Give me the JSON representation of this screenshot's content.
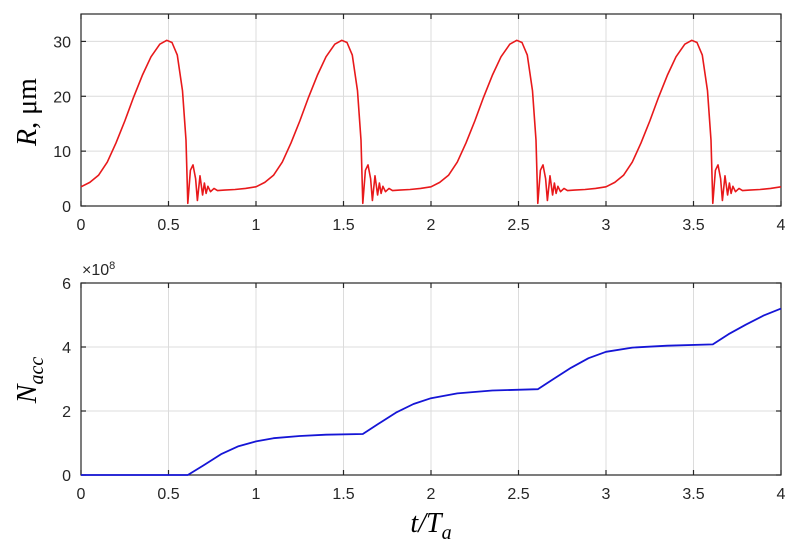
{
  "chart_data": [
    {
      "type": "line",
      "title": "",
      "xlabel": "t/T_a",
      "ylabel": "R, μm",
      "xlim": [
        0,
        4
      ],
      "ylim": [
        0,
        35
      ],
      "xticks": [
        "0",
        "0.5",
        "1",
        "1.5",
        "2",
        "2.5",
        "3",
        "3.5",
        "4"
      ],
      "yticks": [
        "0",
        "10",
        "20",
        "30"
      ],
      "grid": true,
      "series": [
        {
          "name": "R",
          "color": "#e8191b",
          "period": 1,
          "cycle_points": [
            [
              0.0,
              3.5
            ],
            [
              0.05,
              4.3
            ],
            [
              0.1,
              5.6
            ],
            [
              0.15,
              8.0
            ],
            [
              0.2,
              11.5
            ],
            [
              0.25,
              15.5
            ],
            [
              0.3,
              19.8
            ],
            [
              0.35,
              23.8
            ],
            [
              0.4,
              27.2
            ],
            [
              0.45,
              29.5
            ],
            [
              0.49,
              30.2
            ],
            [
              0.52,
              29.8
            ],
            [
              0.55,
              27.5
            ],
            [
              0.58,
              21.0
            ],
            [
              0.6,
              12.0
            ],
            [
              0.61,
              0.5
            ],
            [
              0.625,
              6.5
            ],
            [
              0.64,
              7.5
            ],
            [
              0.655,
              5.0
            ],
            [
              0.665,
              1.0
            ],
            [
              0.68,
              5.5
            ],
            [
              0.695,
              2.0
            ],
            [
              0.705,
              4.2
            ],
            [
              0.715,
              2.3
            ],
            [
              0.725,
              3.6
            ],
            [
              0.74,
              2.6
            ],
            [
              0.76,
              3.2
            ],
            [
              0.78,
              2.8
            ],
            [
              0.82,
              2.9
            ],
            [
              0.88,
              3.0
            ],
            [
              0.94,
              3.2
            ],
            [
              1.0,
              3.5
            ]
          ]
        }
      ]
    },
    {
      "type": "line",
      "title": "",
      "xlabel": "t/T_a",
      "ylabel": "N_acc",
      "xlim": [
        0,
        4
      ],
      "ylim": [
        0,
        6
      ],
      "y_multiplier": "×10^8",
      "xticks": [
        "0",
        "0.5",
        "1",
        "1.5",
        "2",
        "2.5",
        "3",
        "3.5",
        "4"
      ],
      "yticks": [
        "0",
        "2",
        "4",
        "6"
      ],
      "grid": true,
      "series": [
        {
          "name": "N_acc",
          "color": "#1515d6",
          "points": [
            [
              0.0,
              0.0
            ],
            [
              0.61,
              0.0
            ],
            [
              0.7,
              0.3
            ],
            [
              0.8,
              0.65
            ],
            [
              0.9,
              0.9
            ],
            [
              1.0,
              1.05
            ],
            [
              1.1,
              1.15
            ],
            [
              1.25,
              1.22
            ],
            [
              1.4,
              1.26
            ],
            [
              1.61,
              1.28
            ],
            [
              1.7,
              1.6
            ],
            [
              1.8,
              1.95
            ],
            [
              1.9,
              2.22
            ],
            [
              2.0,
              2.4
            ],
            [
              2.15,
              2.55
            ],
            [
              2.35,
              2.64
            ],
            [
              2.61,
              2.68
            ],
            [
              2.7,
              3.0
            ],
            [
              2.8,
              3.35
            ],
            [
              2.9,
              3.65
            ],
            [
              3.0,
              3.85
            ],
            [
              3.15,
              3.98
            ],
            [
              3.35,
              4.04
            ],
            [
              3.61,
              4.08
            ],
            [
              3.7,
              4.4
            ],
            [
              3.8,
              4.7
            ],
            [
              3.9,
              4.98
            ],
            [
              4.0,
              5.2
            ]
          ]
        }
      ]
    }
  ],
  "labels": {
    "top_ylabel_italic": "R",
    "top_ylabel_rest": ", μm",
    "bottom_ylabel_main": "N",
    "bottom_ylabel_sub": "acc",
    "multiplier_x": "×10",
    "multiplier_exp": "8",
    "xlabel_main": "t/T",
    "xlabel_sub": "a"
  }
}
